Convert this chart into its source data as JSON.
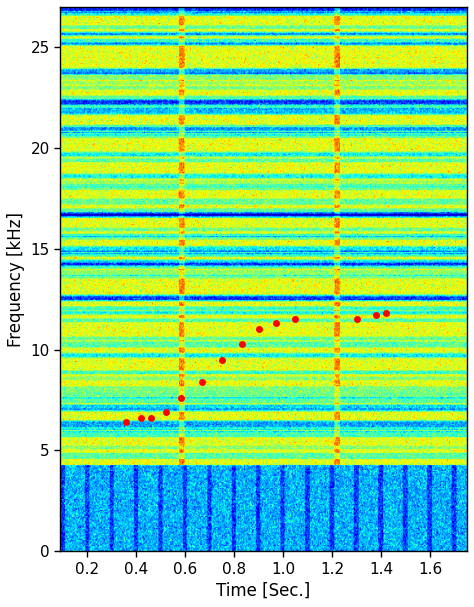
{
  "title": "",
  "xlabel": "Time [Sec.]",
  "ylabel": "Frequency [kHz]",
  "time_range": [
    0.09,
    1.75
  ],
  "freq_range": [
    0,
    27
  ],
  "xlabel_fontsize": 12,
  "ylabel_fontsize": 12,
  "tick_fontsize": 11,
  "whistle_dots": {
    "times": [
      0.36,
      0.42,
      0.46,
      0.52,
      0.585,
      0.67,
      0.75,
      0.83,
      0.9,
      0.97,
      1.05,
      1.3,
      1.38,
      1.42
    ],
    "freqs": [
      6.4,
      6.6,
      6.6,
      6.9,
      7.6,
      8.4,
      9.5,
      10.3,
      11.0,
      11.3,
      11.5,
      11.5,
      11.7,
      11.8
    ]
  },
  "dot_color": "#FF0000",
  "dot_size": 25,
  "noise_floor_freq": 4.3,
  "bright_columns_times": [
    0.585,
    1.22
  ],
  "xticks": [
    0.2,
    0.4,
    0.6,
    0.8,
    1.0,
    1.2,
    1.4,
    1.6
  ],
  "yticks": [
    0,
    5,
    10,
    15,
    20,
    25
  ]
}
